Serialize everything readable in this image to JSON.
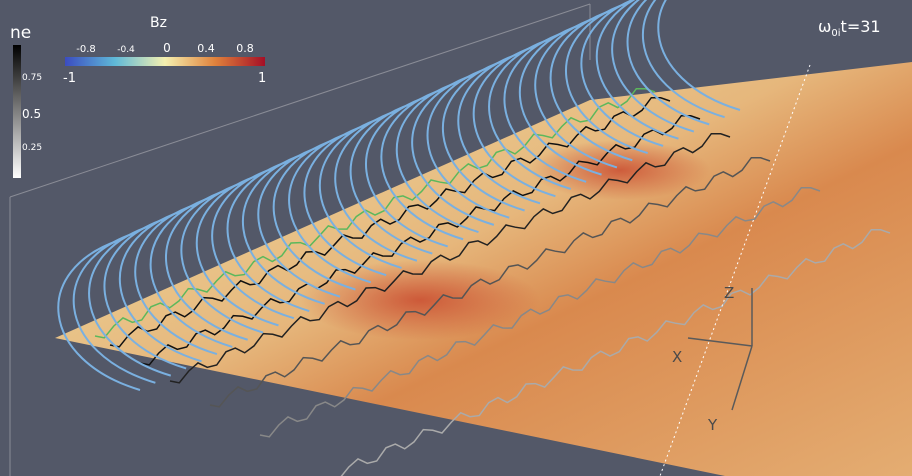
{
  "colorbars": {
    "ne": {
      "title": "ne",
      "ticks": [
        "0.75",
        "0.5",
        "0.25"
      ]
    },
    "bz": {
      "title": "Bz",
      "ticks": [
        "-0.8",
        "-0.4",
        "0",
        "0.4",
        "0.8"
      ],
      "min_label": "-1",
      "max_label": "1"
    }
  },
  "time_label": {
    "symbol": "ω",
    "subscript": "0i",
    "rest": "t=31"
  },
  "axes_triad": {
    "z": "Z",
    "x": "X",
    "y": "Y"
  }
}
